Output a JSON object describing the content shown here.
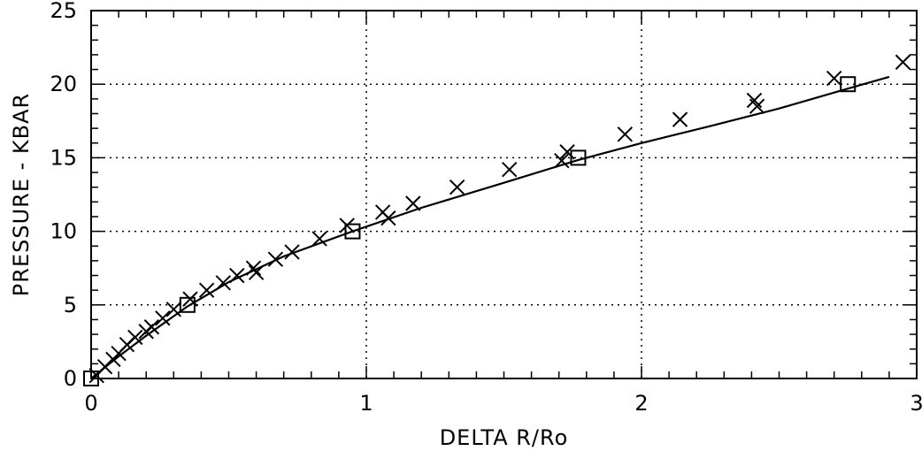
{
  "chart_data": {
    "type": "scatter",
    "title": "",
    "xlabel": "DELTA R/Ro",
    "ylabel": "PRESSURE - KBAR",
    "xlim": [
      0,
      3
    ],
    "ylim": [
      0,
      25
    ],
    "x_ticks": [
      "0",
      "1",
      "2",
      "3"
    ],
    "y_ticks": [
      "0",
      "5",
      "10",
      "15",
      "20",
      "25"
    ],
    "grid": true,
    "legend": "none",
    "series": [
      {
        "marker": "x",
        "points": [
          [
            0.02,
            0.2
          ],
          [
            0.05,
            0.8
          ],
          [
            0.08,
            1.3
          ],
          [
            0.1,
            1.7
          ],
          [
            0.13,
            2.3
          ],
          [
            0.16,
            2.8
          ],
          [
            0.2,
            3.2
          ],
          [
            0.22,
            3.5
          ],
          [
            0.26,
            4.1
          ],
          [
            0.3,
            4.7
          ],
          [
            0.36,
            5.4
          ],
          [
            0.42,
            6.0
          ],
          [
            0.48,
            6.5
          ],
          [
            0.53,
            7.0
          ],
          [
            0.59,
            7.5
          ],
          [
            0.6,
            7.2
          ],
          [
            0.67,
            8.1
          ],
          [
            0.73,
            8.6
          ],
          [
            0.83,
            9.5
          ],
          [
            0.93,
            10.4
          ],
          [
            1.06,
            11.3
          ],
          [
            1.08,
            10.9
          ],
          [
            1.17,
            11.9
          ],
          [
            1.33,
            13.0
          ],
          [
            1.52,
            14.2
          ],
          [
            1.71,
            14.8
          ],
          [
            1.73,
            15.4
          ],
          [
            1.94,
            16.6
          ],
          [
            2.14,
            17.6
          ],
          [
            2.41,
            18.9
          ],
          [
            2.42,
            18.5
          ],
          [
            2.7,
            20.4
          ],
          [
            2.95,
            21.5
          ]
        ]
      },
      {
        "marker": "square",
        "points": [
          [
            0.0,
            0.0
          ],
          [
            0.35,
            5.0
          ],
          [
            0.95,
            10.0
          ],
          [
            1.77,
            15.0
          ],
          [
            2.75,
            20.0
          ]
        ]
      },
      {
        "marker": "none",
        "line": "solid",
        "points": [
          [
            0.0,
            0.0
          ],
          [
            0.05,
            0.75
          ],
          [
            0.1,
            1.5
          ],
          [
            0.2,
            2.9
          ],
          [
            0.35,
            4.9
          ],
          [
            0.5,
            6.55
          ],
          [
            0.7,
            8.3
          ],
          [
            0.95,
            10.0
          ],
          [
            1.2,
            11.6
          ],
          [
            1.5,
            13.3
          ],
          [
            1.77,
            14.85
          ],
          [
            2.0,
            16.0
          ],
          [
            2.25,
            17.15
          ],
          [
            2.5,
            18.35
          ],
          [
            2.75,
            19.7
          ],
          [
            2.9,
            20.5
          ]
        ]
      }
    ]
  }
}
